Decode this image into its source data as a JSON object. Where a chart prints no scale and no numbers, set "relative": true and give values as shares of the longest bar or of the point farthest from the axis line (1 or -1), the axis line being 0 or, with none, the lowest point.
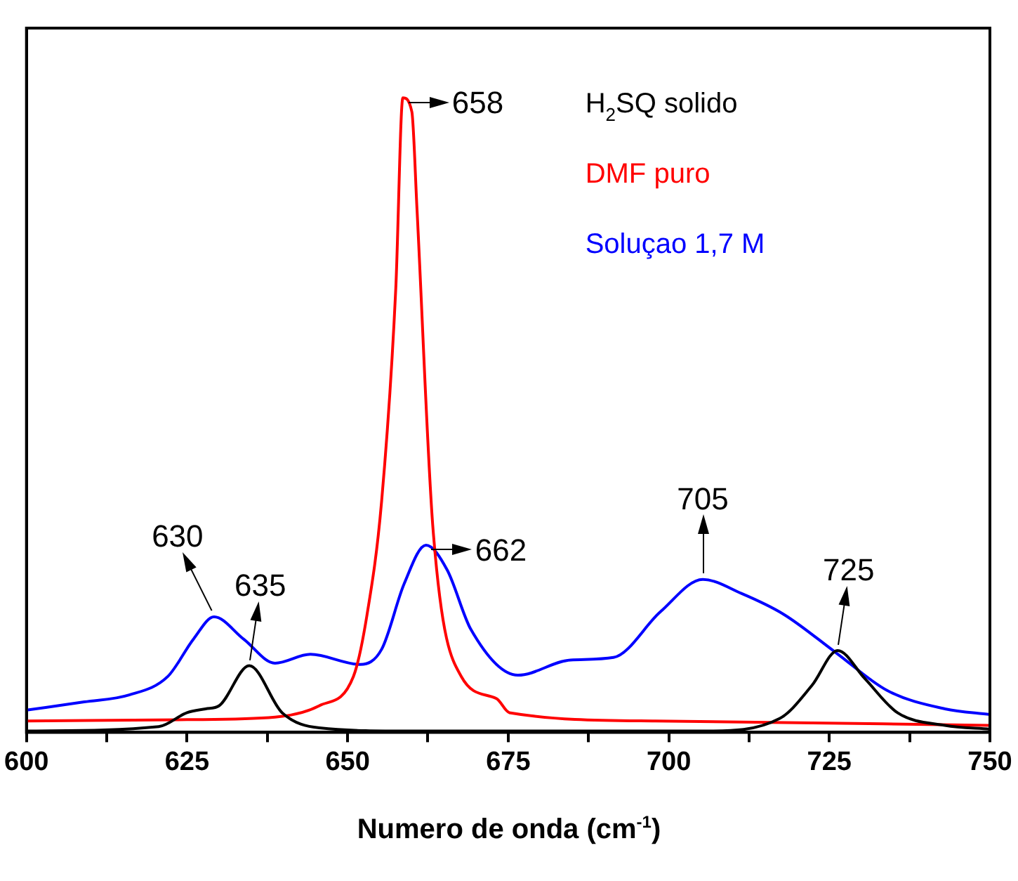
{
  "chart_data": {
    "type": "line",
    "xlabel": "Numero de onda (cm$^{-1}$)",
    "relative": true,
    "xlim": [
      600,
      750
    ],
    "xticks": [
      600,
      {
        "value": 612.5,
        "label": null
      },
      625,
      {
        "value": 637.5,
        "label": null
      },
      650,
      {
        "value": 662.5,
        "label": null
      },
      675,
      {
        "value": 687.5,
        "label": null
      },
      700,
      {
        "value": 712.5,
        "label": null
      },
      725,
      {
        "value": 737.5,
        "label": null
      },
      750
    ],
    "grid": false,
    "legend": "top right",
    "marker": "none",
    "line_style": "solid",
    "series": [
      {
        "name": "H$_{2}$SQ solido",
        "color": "#000000",
        "x": [
          600,
          620.6,
          625,
          627.9,
          630,
          634.7,
          639.8,
          645.6,
          660,
          706,
          717.3,
          722.3,
          726.3,
          730.5,
          735.6,
          743,
          750
        ],
        "values": [
          0.002,
          0.009,
          0.031,
          0.037,
          0.042,
          0.105,
          0.031,
          0.007,
          0.002,
          0.002,
          0.022,
          0.074,
          0.129,
          0.085,
          0.031,
          0.011,
          0.005
        ]
      },
      {
        "name": "DMF puro",
        "color": "#ff0000",
        "x": [
          600,
          625,
          638.7,
          645.6,
          650.9,
          653,
          655.3,
          657.5,
          658.6,
          660,
          660.8,
          663.3,
          667.7,
          673.2,
          675.2,
          697.9,
          750
        ],
        "values": [
          0.018,
          0.02,
          0.024,
          0.042,
          0.088,
          0.184,
          0.365,
          0.7,
          1,
          0.978,
          0.825,
          0.32,
          0.088,
          0.053,
          0.031,
          0.018,
          0.011
        ]
      },
      {
        "name": "Soluçao 1,7 M",
        "color": "#0000ff",
        "x": [
          600,
          609,
          616,
          622,
          626,
          629.2,
          633.8,
          638.7,
          644.2,
          652,
          655.3,
          658.8,
          662.2,
          665.5,
          669.2,
          676.5,
          684.7,
          691.4,
          698.7,
          705.3,
          711.3,
          717.9,
          726.1,
          734,
          743,
          750
        ],
        "values": [
          0.035,
          0.048,
          0.059,
          0.088,
          0.147,
          0.182,
          0.147,
          0.109,
          0.123,
          0.107,
          0.131,
          0.234,
          0.295,
          0.256,
          0.162,
          0.09,
          0.114,
          0.118,
          0.19,
          0.241,
          0.219,
          0.186,
          0.125,
          0.066,
          0.037,
          0.028
        ]
      }
    ],
    "annotations": [
      {
        "text": "630",
        "x": 629.2,
        "y": 0.182
      },
      {
        "text": "635",
        "x": 634.7,
        "y": 0.105
      },
      {
        "text": "658",
        "x": 658.6,
        "y": 1
      },
      {
        "text": "662",
        "x": 662.2,
        "y": 0.295
      },
      {
        "text": "705",
        "x": 705.3,
        "y": 0.241
      },
      {
        "text": "725",
        "x": 726.3,
        "y": 0.129
      }
    ]
  }
}
